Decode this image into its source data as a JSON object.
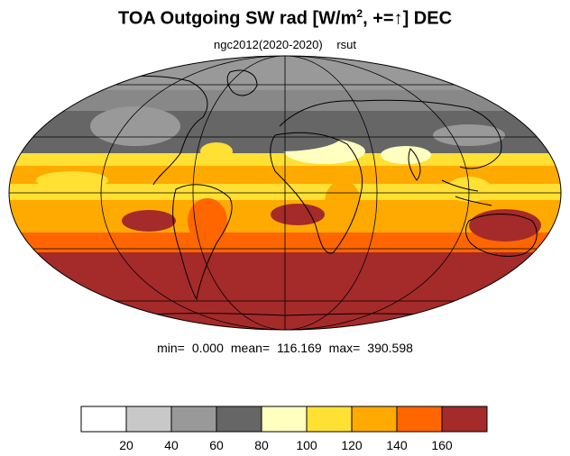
{
  "title": {
    "main": "TOA Outgoing SW rad [W/m",
    "sup": "2",
    "tail": ", +=↑] DEC"
  },
  "subtitle": {
    "run": "ngc2012(2020-2020)",
    "variable": "rsut"
  },
  "stats": {
    "min_label": "min=",
    "min_value": "0.000",
    "mean_label": "mean=",
    "mean_value": "116.169",
    "max_label": "max=",
    "max_value": "390.598"
  },
  "colorbar": {
    "colors": [
      "#ffffff",
      "#c8c8c8",
      "#999999",
      "#666666",
      "#ffffc0",
      "#ffe033",
      "#ffaa00",
      "#ff6600",
      "#a52a2a"
    ],
    "tick_labels": [
      "20",
      "40",
      "60",
      "80",
      "100",
      "120",
      "140",
      "160"
    ]
  },
  "map": {
    "projection": "Mollweide",
    "ocean_outline_color": "#000000"
  }
}
